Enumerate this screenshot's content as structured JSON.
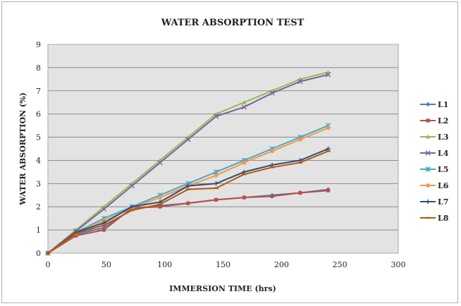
{
  "chart_data": {
    "type": "line",
    "title": "WATER ABSORPTION TEST",
    "xlabel": "IMMERSION TIME (hrs)",
    "ylabel": "WATER ABSORPTION (%)",
    "xlim": [
      0,
      300
    ],
    "ylim": [
      0,
      9
    ],
    "xticks": [
      0,
      50,
      100,
      150,
      200,
      250,
      300
    ],
    "yticks": [
      0,
      1,
      2,
      3,
      4,
      5,
      6,
      7,
      8,
      9
    ],
    "grid": true,
    "legend_position": "right",
    "series": [
      {
        "name": "L1",
        "color": "#4a7ebb",
        "marker": "diamond",
        "x": [
          0,
          24,
          48,
          72,
          96,
          120,
          144,
          168,
          192,
          216,
          240
        ],
        "y": [
          0,
          0.8,
          1.1,
          1.9,
          2.05,
          2.15,
          2.3,
          2.4,
          2.5,
          2.6,
          2.75
        ]
      },
      {
        "name": "L2",
        "color": "#be4b48",
        "marker": "square",
        "x": [
          0,
          24,
          48,
          72,
          96,
          120,
          144,
          168,
          192,
          216,
          240
        ],
        "y": [
          0,
          0.75,
          1.0,
          1.95,
          2.0,
          2.15,
          2.3,
          2.4,
          2.45,
          2.6,
          2.7
        ]
      },
      {
        "name": "L3",
        "color": "#98b954",
        "marker": "triangle",
        "x": [
          0,
          24,
          48,
          72,
          96,
          120,
          144,
          168,
          192,
          216,
          240
        ],
        "y": [
          0,
          1.0,
          2.0,
          3.0,
          4.0,
          5.0,
          6.0,
          6.5,
          7.0,
          7.5,
          7.8
        ]
      },
      {
        "name": "L4",
        "color": "#7d60a0",
        "marker": "x",
        "x": [
          0,
          24,
          48,
          72,
          96,
          120,
          144,
          168,
          192,
          216,
          240
        ],
        "y": [
          0,
          0.95,
          1.9,
          2.9,
          3.9,
          4.9,
          5.9,
          6.3,
          6.9,
          7.4,
          7.7
        ]
      },
      {
        "name": "L5",
        "color": "#46aac5",
        "marker": "star",
        "x": [
          0,
          24,
          48,
          72,
          96,
          120,
          144,
          168,
          192,
          216,
          240
        ],
        "y": [
          0,
          0.9,
          1.5,
          2.0,
          2.5,
          3.0,
          3.5,
          4.0,
          4.5,
          5.0,
          5.5
        ]
      },
      {
        "name": "L6",
        "color": "#f79646",
        "marker": "circle",
        "x": [
          0,
          24,
          48,
          72,
          96,
          120,
          144,
          168,
          192,
          216,
          240
        ],
        "y": [
          0,
          0.85,
          1.4,
          1.95,
          2.4,
          2.9,
          3.35,
          3.9,
          4.4,
          4.9,
          5.4
        ]
      },
      {
        "name": "L7",
        "color": "#2c4d75",
        "marker": "plus",
        "x": [
          0,
          24,
          48,
          72,
          96,
          120,
          144,
          168,
          192,
          216,
          240
        ],
        "y": [
          0,
          0.9,
          1.3,
          2.0,
          2.2,
          2.9,
          3.0,
          3.5,
          3.8,
          4.0,
          4.5
        ]
      },
      {
        "name": "L8",
        "color": "#b65708",
        "marker": "dash",
        "x": [
          0,
          24,
          48,
          72,
          96,
          120,
          144,
          168,
          192,
          216,
          240
        ],
        "y": [
          0,
          0.85,
          1.2,
          1.85,
          2.1,
          2.75,
          2.8,
          3.4,
          3.7,
          3.9,
          4.4
        ]
      }
    ]
  }
}
